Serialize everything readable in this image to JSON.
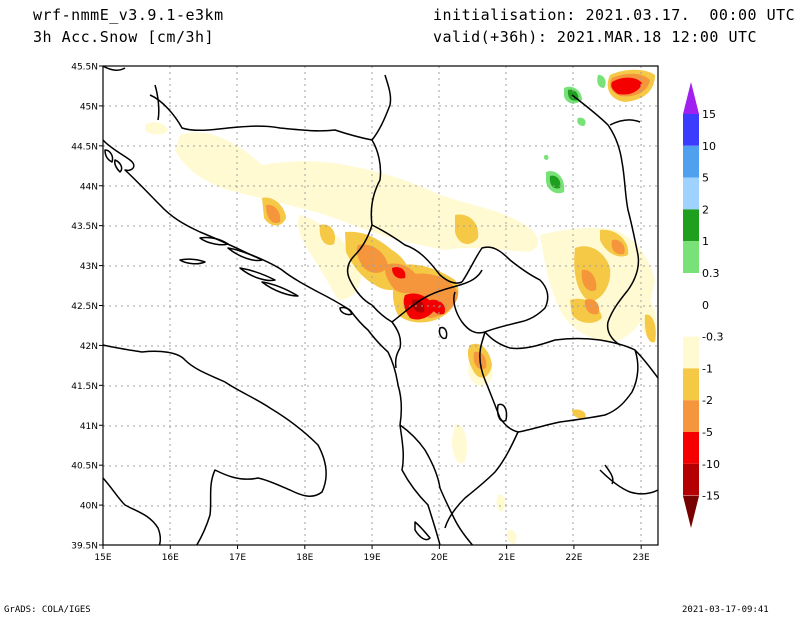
{
  "header": {
    "model": "wrf-nmmE_v3.9.1-e3km",
    "field": "3h Acc.Snow [cm/3h]",
    "init": "initialisation: 2021.03.17.  00:00 UTC",
    "valid": "valid(+36h): 2021.MAR.18 12:00 UTC"
  },
  "footer": {
    "left": "GrADS: COLA/IGES",
    "right": "2021-03-17-09:41"
  },
  "map": {
    "lon_range": [
      15,
      23.25
    ],
    "lat_range": [
      39.5,
      45.5
    ],
    "lat_ticks": [
      {
        "value": 45.5,
        "label": "45.5N"
      },
      {
        "value": 45,
        "label": "45N"
      },
      {
        "value": 44.5,
        "label": "44.5N"
      },
      {
        "value": 44,
        "label": "44N"
      },
      {
        "value": 43.5,
        "label": "43.5N"
      },
      {
        "value": 43,
        "label": "43N"
      },
      {
        "value": 42.5,
        "label": "42.5N"
      },
      {
        "value": 42,
        "label": "42N"
      },
      {
        "value": 41.5,
        "label": "41.5N"
      },
      {
        "value": 41,
        "label": "41N"
      },
      {
        "value": 40.5,
        "label": "40.5N"
      },
      {
        "value": 40,
        "label": "40N"
      },
      {
        "value": 39.5,
        "label": "39.5N"
      }
    ],
    "lon_ticks": [
      {
        "value": 15,
        "label": "15E"
      },
      {
        "value": 16,
        "label": "16E"
      },
      {
        "value": 17,
        "label": "17E"
      },
      {
        "value": 18,
        "label": "18E"
      },
      {
        "value": 19,
        "label": "19E"
      },
      {
        "value": 20,
        "label": "20E"
      },
      {
        "value": 21,
        "label": "21E"
      },
      {
        "value": 22,
        "label": "22E"
      },
      {
        "value": 23,
        "label": "23E"
      }
    ]
  },
  "colorbar": {
    "top_color": "#a020f0",
    "bottom_color": "#780000",
    "bins": [
      {
        "color": "#3c3cff"
      },
      {
        "color": "#50a0f0"
      },
      {
        "color": "#a0d2ff"
      },
      {
        "color": "#1ea01e"
      },
      {
        "color": "#78e178"
      },
      {
        "color": "#ffffff"
      },
      {
        "color": "#ffffff"
      },
      {
        "color": "#fffad2"
      },
      {
        "color": "#f5c846"
      },
      {
        "color": "#f5963c"
      },
      {
        "color": "#f50000"
      },
      {
        "color": "#b40000"
      }
    ],
    "labels": [
      "15",
      "10",
      "5",
      "2",
      "1",
      "0.3",
      "0",
      "-0.3",
      "-1",
      "-2",
      "-5",
      "-10",
      "-15"
    ]
  }
}
